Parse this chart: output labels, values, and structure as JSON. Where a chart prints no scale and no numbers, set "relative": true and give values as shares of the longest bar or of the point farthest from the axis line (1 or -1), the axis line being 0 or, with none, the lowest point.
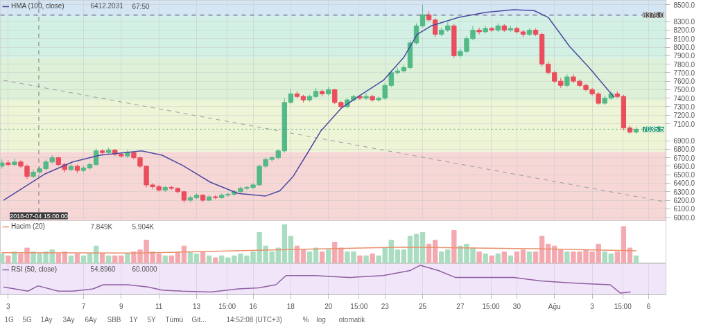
{
  "chart_data": [
    {
      "type": "candlestick",
      "x": [
        "2018-07-02T16:00",
        "2018-07-03T00:00",
        "2018-07-03T08:00",
        "2018-07-03T16:00",
        "2018-07-04T00:00",
        "2018-07-04T08:00",
        "2018-07-04T16:00",
        "2018-07-05T00:00",
        "2018-07-05T08:00",
        "2018-07-05T16:00",
        "2018-07-06T00:00",
        "2018-07-06T08:00",
        "2018-07-06T16:00",
        "2018-07-07T00:00",
        "2018-07-07T08:00",
        "2018-07-07T16:00",
        "2018-07-08T00:00",
        "2018-07-08T08:00",
        "2018-07-08T16:00",
        "2018-07-09T00:00",
        "2018-07-09T08:00",
        "2018-07-09T16:00",
        "2018-07-10T00:00",
        "2018-07-10T08:00",
        "2018-07-10T16:00",
        "2018-07-11T00:00",
        "2018-07-11T08:00",
        "2018-07-11T16:00",
        "2018-07-12T00:00",
        "2018-07-12T08:00",
        "2018-07-12T16:00",
        "2018-07-13T00:00",
        "2018-07-13T08:00",
        "2018-07-13T16:00",
        "2018-07-14T00:00",
        "2018-07-14T08:00",
        "2018-07-14T16:00",
        "2018-07-15T00:00",
        "2018-07-15T08:00",
        "2018-07-15T16:00",
        "2018-07-16T00:00",
        "2018-07-16T08:00",
        "2018-07-16T16:00",
        "2018-07-17T00:00",
        "2018-07-17T08:00",
        "2018-07-17T16:00",
        "2018-07-18T00:00",
        "2018-07-18T08:00",
        "2018-07-18T16:00",
        "2018-07-19T00:00",
        "2018-07-19T08:00",
        "2018-07-19T16:00",
        "2018-07-20T00:00",
        "2018-07-20T08:00",
        "2018-07-20T16:00",
        "2018-07-21T00:00",
        "2018-07-21T08:00",
        "2018-07-21T16:00",
        "2018-07-22T00:00",
        "2018-07-22T08:00",
        "2018-07-22T16:00",
        "2018-07-23T00:00",
        "2018-07-23T08:00",
        "2018-07-23T16:00",
        "2018-07-24T00:00",
        "2018-07-24T08:00",
        "2018-07-24T16:00",
        "2018-07-25T00:00",
        "2018-07-25T08:00",
        "2018-07-25T16:00",
        "2018-07-26T00:00",
        "2018-07-26T08:00",
        "2018-07-26T16:00",
        "2018-07-27T00:00",
        "2018-07-27T08:00",
        "2018-07-27T16:00",
        "2018-07-28T00:00",
        "2018-07-28T08:00",
        "2018-07-28T16:00",
        "2018-07-29T00:00",
        "2018-07-29T08:00",
        "2018-07-29T16:00",
        "2018-07-30T00:00",
        "2018-07-30T08:00",
        "2018-07-30T16:00",
        "2018-07-31T00:00",
        "2018-07-31T08:00",
        "2018-07-31T16:00",
        "2018-08-01T00:00",
        "2018-08-01T08:00",
        "2018-08-01T16:00",
        "2018-08-02T00:00",
        "2018-08-02T08:00",
        "2018-08-02T16:00",
        "2018-08-03T00:00",
        "2018-08-03T08:00",
        "2018-08-03T16:00",
        "2018-08-04T00:00",
        "2018-08-04T08:00",
        "2018-08-04T16:00",
        "2018-08-05T00:00",
        "2018-08-05T08:00"
      ],
      "ohlc": [
        [
          6600,
          6680,
          6570,
          6640
        ],
        [
          6640,
          6670,
          6600,
          6620
        ],
        [
          6620,
          6690,
          6600,
          6650
        ],
        [
          6650,
          6670,
          6580,
          6600
        ],
        [
          6600,
          6620,
          6450,
          6480
        ],
        [
          6480,
          6560,
          6460,
          6530
        ],
        [
          6530,
          6600,
          6510,
          6570
        ],
        [
          6570,
          6680,
          6550,
          6650
        ],
        [
          6650,
          6730,
          6630,
          6700
        ],
        [
          6700,
          6710,
          6600,
          6620
        ],
        [
          6620,
          6640,
          6530,
          6560
        ],
        [
          6560,
          6630,
          6540,
          6600
        ],
        [
          6600,
          6620,
          6520,
          6550
        ],
        [
          6550,
          6600,
          6530,
          6580
        ],
        [
          6580,
          6640,
          6560,
          6620
        ],
        [
          6620,
          6810,
          6600,
          6780
        ],
        [
          6780,
          6800,
          6730,
          6760
        ],
        [
          6760,
          6820,
          6740,
          6790
        ],
        [
          6790,
          6800,
          6720,
          6740
        ],
        [
          6740,
          6760,
          6700,
          6720
        ],
        [
          6720,
          6790,
          6700,
          6760
        ],
        [
          6760,
          6770,
          6680,
          6700
        ],
        [
          6700,
          6710,
          6580,
          6600
        ],
        [
          6600,
          6610,
          6350,
          6380
        ],
        [
          6380,
          6400,
          6330,
          6360
        ],
        [
          6360,
          6380,
          6300,
          6320
        ],
        [
          6320,
          6370,
          6300,
          6350
        ],
        [
          6350,
          6370,
          6320,
          6340
        ],
        [
          6340,
          6350,
          6280,
          6300
        ],
        [
          6300,
          6310,
          6170,
          6200
        ],
        [
          6200,
          6250,
          6180,
          6230
        ],
        [
          6230,
          6280,
          6210,
          6260
        ],
        [
          6260,
          6270,
          6180,
          6200
        ],
        [
          6200,
          6260,
          6190,
          6240
        ],
        [
          6240,
          6260,
          6210,
          6230
        ],
        [
          6230,
          6280,
          6220,
          6260
        ],
        [
          6260,
          6290,
          6240,
          6270
        ],
        [
          6270,
          6320,
          6250,
          6300
        ],
        [
          6300,
          6360,
          6290,
          6340
        ],
        [
          6340,
          6370,
          6320,
          6350
        ],
        [
          6350,
          6400,
          6330,
          6380
        ],
        [
          6380,
          6620,
          6370,
          6600
        ],
        [
          6600,
          6700,
          6580,
          6680
        ],
        [
          6680,
          6720,
          6650,
          6700
        ],
        [
          6700,
          6800,
          6680,
          6780
        ],
        [
          6780,
          7400,
          6760,
          7350
        ],
        [
          7350,
          7500,
          7330,
          7450
        ],
        [
          7450,
          7480,
          7400,
          7420
        ],
        [
          7420,
          7440,
          7350,
          7380
        ],
        [
          7380,
          7440,
          7360,
          7420
        ],
        [
          7420,
          7520,
          7400,
          7480
        ],
        [
          7480,
          7500,
          7420,
          7450
        ],
        [
          7450,
          7530,
          7430,
          7500
        ],
        [
          7500,
          7510,
          7330,
          7350
        ],
        [
          7350,
          7370,
          7270,
          7300
        ],
        [
          7300,
          7400,
          7280,
          7380
        ],
        [
          7380,
          7440,
          7360,
          7420
        ],
        [
          7420,
          7440,
          7380,
          7400
        ],
        [
          7400,
          7460,
          7380,
          7420
        ],
        [
          7420,
          7440,
          7360,
          7380
        ],
        [
          7380,
          7420,
          7360,
          7400
        ],
        [
          7400,
          7580,
          7380,
          7550
        ],
        [
          7550,
          7730,
          7530,
          7700
        ],
        [
          7700,
          7760,
          7680,
          7720
        ],
        [
          7720,
          7790,
          7700,
          7760
        ],
        [
          7760,
          8080,
          7740,
          8050
        ],
        [
          8050,
          8280,
          8030,
          8250
        ],
        [
          8250,
          8500,
          8230,
          8380
        ],
        [
          8380,
          8420,
          8300,
          8320
        ],
        [
          8320,
          8340,
          8120,
          8150
        ],
        [
          8150,
          8230,
          8130,
          8200
        ],
        [
          8200,
          8290,
          8180,
          8250
        ],
        [
          8250,
          8270,
          7870,
          7900
        ],
        [
          7900,
          7980,
          7870,
          7950
        ],
        [
          7950,
          8130,
          7930,
          8100
        ],
        [
          8100,
          8250,
          8080,
          8200
        ],
        [
          8200,
          8230,
          8150,
          8180
        ],
        [
          8180,
          8250,
          8160,
          8220
        ],
        [
          8220,
          8240,
          8180,
          8200
        ],
        [
          8200,
          8280,
          8180,
          8250
        ],
        [
          8250,
          8270,
          8180,
          8200
        ],
        [
          8200,
          8250,
          8180,
          8220
        ],
        [
          8220,
          8240,
          8160,
          8180
        ],
        [
          8180,
          8200,
          8120,
          8150
        ],
        [
          8150,
          8220,
          8130,
          8200
        ],
        [
          8200,
          8220,
          8130,
          8150
        ],
        [
          8150,
          8170,
          7770,
          7800
        ],
        [
          7800,
          7830,
          7680,
          7700
        ],
        [
          7700,
          7720,
          7580,
          7600
        ],
        [
          7600,
          7640,
          7520,
          7550
        ],
        [
          7550,
          7680,
          7530,
          7650
        ],
        [
          7650,
          7680,
          7580,
          7600
        ],
        [
          7600,
          7620,
          7530,
          7550
        ],
        [
          7550,
          7570,
          7480,
          7500
        ],
        [
          7500,
          7520,
          7430,
          7450
        ],
        [
          7450,
          7470,
          7320,
          7340
        ],
        [
          7340,
          7430,
          7320,
          7400
        ],
        [
          7400,
          7480,
          7380,
          7450
        ],
        [
          7450,
          7480,
          7400,
          7420
        ],
        [
          7420,
          7440,
          7020,
          7050
        ],
        [
          7050,
          7080,
          6980,
          7000
        ],
        [
          7000,
          7060,
          6980,
          7035.5
        ]
      ],
      "colors": [
        "#53b987",
        "#eb4d5c",
        "#53b987",
        "#eb4d5c",
        "#eb4d5c",
        "#53b987",
        "#53b987",
        "#53b987",
        "#53b987",
        "#eb4d5c",
        "#eb4d5c",
        "#53b987",
        "#eb4d5c",
        "#53b987",
        "#53b987",
        "#53b987",
        "#eb4d5c",
        "#53b987",
        "#eb4d5c",
        "#eb4d5c",
        "#53b987",
        "#eb4d5c",
        "#eb4d5c",
        "#eb4d5c",
        "#eb4d5c",
        "#eb4d5c",
        "#53b987",
        "#eb4d5c",
        "#eb4d5c",
        "#eb4d5c",
        "#53b987",
        "#53b987",
        "#eb4d5c",
        "#53b987",
        "#eb4d5c",
        "#53b987",
        "#53b987",
        "#53b987",
        "#53b987",
        "#53b987",
        "#53b987",
        "#53b987",
        "#53b987",
        "#53b987",
        "#53b987",
        "#53b987",
        "#53b987",
        "#eb4d5c",
        "#eb4d5c",
        "#53b987",
        "#53b987",
        "#eb4d5c",
        "#53b987",
        "#eb4d5c",
        "#eb4d5c",
        "#53b987",
        "#53b987",
        "#eb4d5c",
        "#53b987",
        "#eb4d5c",
        "#53b987",
        "#53b987",
        "#53b987",
        "#53b987",
        "#53b987",
        "#53b987",
        "#53b987",
        "#53b987",
        "#eb4d5c",
        "#eb4d5c",
        "#53b987",
        "#53b987",
        "#eb4d5c",
        "#53b987",
        "#53b987",
        "#53b987",
        "#eb4d5c",
        "#53b987",
        "#eb4d5c",
        "#53b987",
        "#eb4d5c",
        "#53b987",
        "#eb4d5c",
        "#eb4d5c",
        "#53b987",
        "#eb4d5c",
        "#eb4d5c",
        "#eb4d5c",
        "#eb4d5c",
        "#eb4d5c",
        "#53b987",
        "#eb4d5c",
        "#eb4d5c",
        "#eb4d5c",
        "#eb4d5c",
        "#eb4d5c",
        "#53b987",
        "#53b987",
        "#eb4d5c",
        "#eb4d5c",
        "#eb4d5c",
        "#53b987"
      ],
      "series": [
        {
          "type": "line",
          "name": "HMA (100, close)",
          "color": "#4a4aa0",
          "x": [
            "2018-07-02T18:00",
            "2018-07-04T23:00",
            "2018-07-06T10:00",
            "2018-07-07T21:00",
            "2018-07-10T02:00",
            "2018-07-11T04:00",
            "2018-07-12T06:00",
            "2018-07-13T18:00",
            "2018-07-15T05:00",
            "2018-07-16T16:00",
            "2018-07-17T10:00",
            "2018-07-18T03:00",
            "2018-07-18T21:00",
            "2018-07-19T14:00",
            "2018-07-20T16:00",
            "2018-07-21T19:00",
            "2018-07-22T22:00",
            "2018-07-24T00:00",
            "2018-07-24T17:00",
            "2018-07-25T11:00",
            "2018-07-26T22:00",
            "2018-07-28T09:00",
            "2018-07-29T20:00",
            "2018-07-30T22:00",
            "2018-07-31T16:00",
            "2018-08-01T19:00",
            "2018-08-02T21:00",
            "2018-08-04T04:00"
          ],
          "values": [
            6200,
            6510,
            6650,
            6730,
            6780,
            6730,
            6610,
            6410,
            6280,
            6250,
            6310,
            6480,
            6750,
            7010,
            7280,
            7450,
            7610,
            7880,
            8150,
            8250,
            8350,
            8410,
            8440,
            8430,
            8350,
            8010,
            7750,
            7410
          ]
        },
        {
          "type": "line",
          "color": "#9a9a9a",
          "line_style": "dashed",
          "x": [
            "2018-07-02T18:00",
            "2018-08-06T22:00"
          ],
          "values": [
            7610,
            6180
          ]
        }
      ],
      "xlim": [
        "2018-07-02T14:00",
        "2018-08-06T22:00"
      ],
      "ylim": [
        5960,
        8550
      ],
      "yticks": [
        {
          "value": 6000,
          "label": "6000.0"
        },
        {
          "value": 6100,
          "label": "6100.0"
        },
        {
          "value": 6200,
          "label": "6200.0"
        },
        {
          "value": 6300,
          "label": "6300.0"
        },
        {
          "value": 6400,
          "label": "6400.0"
        },
        {
          "value": 6500,
          "label": "6500.0"
        },
        {
          "value": 6600,
          "label": "6600.0"
        },
        {
          "value": 6700,
          "label": "6700.0"
        },
        {
          "value": 6800,
          "label": "6800.0"
        },
        {
          "value": 6900,
          "label": "6900.0"
        },
        {
          "value": 7100,
          "label": "7100.0"
        },
        {
          "value": 7200,
          "label": "7200.0"
        },
        {
          "value": 7300,
          "label": "7300.0"
        },
        {
          "value": 7400,
          "label": "7400.0"
        },
        {
          "value": 7500,
          "label": "7500.0"
        },
        {
          "value": 7600,
          "label": "7600.0"
        },
        {
          "value": 7700,
          "label": "7700.0"
        },
        {
          "value": 7800,
          "label": "7800.0"
        },
        {
          "value": 7900,
          "label": "7900.0"
        },
        {
          "value": 8000,
          "label": "8000.0"
        },
        {
          "value": 8100,
          "label": "8100.0"
        },
        {
          "value": 8200,
          "label": "8200.0"
        },
        {
          "value": 8300,
          "label": "8300.0"
        },
        {
          "value": 8500,
          "label": "8500.0"
        }
      ],
      "xticks": [
        {
          "value": "2018-07-03T00:00",
          "label": null
        },
        {
          "value": "2018-07-07T00:00",
          "label": null
        },
        {
          "value": "2018-07-09T00:00",
          "label": null
        },
        {
          "value": "2018-07-11T00:00",
          "label": null
        },
        {
          "value": "2018-07-13T00:00",
          "label": null
        },
        {
          "value": "2018-07-14T15:00",
          "label": null
        },
        {
          "value": "2018-07-16T00:00",
          "label": null
        },
        {
          "value": "2018-07-18T00:00",
          "label": null
        },
        {
          "value": "2018-07-20T00:00",
          "label": null
        },
        {
          "value": "2018-07-21T15:00",
          "label": null
        },
        {
          "value": "2018-07-23T00:00",
          "label": null
        },
        {
          "value": "2018-07-25T00:00",
          "label": null
        },
        {
          "value": "2018-07-27T00:00",
          "label": null
        },
        {
          "value": "2018-07-28T15:00",
          "label": null
        },
        {
          "value": "2018-07-30T00:00",
          "label": null
        },
        {
          "value": "2018-08-01T00:00",
          "label": null
        },
        {
          "value": "2018-08-03T00:00",
          "label": null
        },
        {
          "value": "2018-08-04T15:00",
          "label": null
        },
        {
          "value": "2018-08-06T00:00",
          "label": null
        }
      ],
      "tick_labels": "y",
      "grid": true,
      "legend": "top left",
      "bands": [
        {
          "axis": "y",
          "from": 8360,
          "to": 8550,
          "color": "#d4e6f4"
        },
        {
          "axis": "y",
          "from": 7873,
          "to": 8360,
          "color": "#d2f1e4"
        },
        {
          "axis": "y",
          "from": 7373,
          "to": 7873,
          "color": "#dcf1d8"
        },
        {
          "axis": "y",
          "from": 6767,
          "to": 7373,
          "color": "#eef5d6"
        },
        {
          "axis": "y",
          "from": 5960,
          "to": 6767,
          "color": "#f7d6d6"
        }
      ],
      "ref_lines": [
        {
          "axis": "y",
          "value": 8376,
          "label": "8376.0",
          "color": "#555555",
          "line_style": "dashed"
        },
        {
          "axis": "y",
          "value": 7035.5,
          "label": "7035.5",
          "color": "#2e9e78",
          "line_style": "dotted"
        },
        {
          "axis": "x",
          "value": "2018-07-04T15:00",
          "label": "2018-07-04 15:00:00",
          "color": "#777777",
          "line_style": "dashed"
        }
      ],
      "annotations": [
        "6412.2031",
        "67:50"
      ]
    },
    {
      "type": "bar",
      "relative": true,
      "x": [
        "2018-07-02T16:00",
        "2018-07-03T00:00",
        "2018-07-03T08:00",
        "2018-07-03T16:00",
        "2018-07-04T00:00",
        "2018-07-04T08:00",
        "2018-07-04T16:00",
        "2018-07-05T00:00",
        "2018-07-05T08:00",
        "2018-07-05T16:00",
        "2018-07-06T00:00",
        "2018-07-06T08:00",
        "2018-07-06T16:00",
        "2018-07-07T00:00",
        "2018-07-07T08:00",
        "2018-07-07T16:00",
        "2018-07-08T00:00",
        "2018-07-08T08:00",
        "2018-07-08T16:00",
        "2018-07-09T00:00",
        "2018-07-09T08:00",
        "2018-07-09T16:00",
        "2018-07-10T00:00",
        "2018-07-10T08:00",
        "2018-07-10T16:00",
        "2018-07-11T00:00",
        "2018-07-11T08:00",
        "2018-07-11T16:00",
        "2018-07-12T00:00",
        "2018-07-12T08:00",
        "2018-07-12T16:00",
        "2018-07-13T00:00",
        "2018-07-13T08:00",
        "2018-07-13T16:00",
        "2018-07-14T00:00",
        "2018-07-14T08:00",
        "2018-07-14T16:00",
        "2018-07-15T00:00",
        "2018-07-15T08:00",
        "2018-07-15T16:00",
        "2018-07-16T00:00",
        "2018-07-16T08:00",
        "2018-07-16T16:00",
        "2018-07-17T00:00",
        "2018-07-17T08:00",
        "2018-07-17T16:00",
        "2018-07-18T00:00",
        "2018-07-18T08:00",
        "2018-07-18T16:00",
        "2018-07-19T00:00",
        "2018-07-19T08:00",
        "2018-07-19T16:00",
        "2018-07-20T00:00",
        "2018-07-20T08:00",
        "2018-07-20T16:00",
        "2018-07-21T00:00",
        "2018-07-21T08:00",
        "2018-07-21T16:00",
        "2018-07-22T00:00",
        "2018-07-22T08:00",
        "2018-07-22T16:00",
        "2018-07-23T00:00",
        "2018-07-23T08:00",
        "2018-07-23T16:00",
        "2018-07-24T00:00",
        "2018-07-24T08:00",
        "2018-07-24T16:00",
        "2018-07-25T00:00",
        "2018-07-25T08:00",
        "2018-07-25T16:00",
        "2018-07-26T00:00",
        "2018-07-26T08:00",
        "2018-07-26T16:00",
        "2018-07-27T00:00",
        "2018-07-27T08:00",
        "2018-07-27T16:00",
        "2018-07-28T00:00",
        "2018-07-28T08:00",
        "2018-07-28T16:00",
        "2018-07-29T00:00",
        "2018-07-29T08:00",
        "2018-07-29T16:00",
        "2018-07-30T00:00",
        "2018-07-30T08:00",
        "2018-07-30T16:00",
        "2018-07-31T00:00",
        "2018-07-31T08:00",
        "2018-07-31T16:00",
        "2018-08-01T00:00",
        "2018-08-01T08:00",
        "2018-08-01T16:00",
        "2018-08-02T00:00",
        "2018-08-02T08:00",
        "2018-08-02T16:00",
        "2018-08-03T00:00",
        "2018-08-03T08:00",
        "2018-08-03T16:00",
        "2018-08-04T00:00",
        "2018-08-04T08:00",
        "2018-08-04T16:00",
        "2018-08-05T00:00",
        "2018-08-05T08:00"
      ],
      "values": [
        0.25,
        0.2,
        0.3,
        0.25,
        0.4,
        0.3,
        0.25,
        0.3,
        0.35,
        0.25,
        0.3,
        0.2,
        0.25,
        0.2,
        0.25,
        0.45,
        0.25,
        0.2,
        0.2,
        0.2,
        0.25,
        0.3,
        0.35,
        0.6,
        0.3,
        0.25,
        0.2,
        0.2,
        0.3,
        0.45,
        0.3,
        0.25,
        0.3,
        0.2,
        0.15,
        0.2,
        0.15,
        0.2,
        0.25,
        0.2,
        0.3,
        0.8,
        0.45,
        0.3,
        0.4,
        1,
        0.7,
        0.45,
        0.35,
        0.3,
        0.4,
        0.3,
        0.35,
        0.55,
        0.4,
        0.3,
        0.3,
        0.2,
        0.2,
        0.25,
        0.2,
        0.4,
        0.6,
        0.35,
        0.35,
        0.7,
        0.75,
        0.8,
        0.5,
        0.6,
        0.3,
        0.35,
        0.85,
        0.45,
        0.5,
        0.4,
        0.3,
        0.25,
        0.2,
        0.25,
        0.3,
        0.2,
        0.3,
        0.35,
        0.3,
        0.3,
        0.7,
        0.5,
        0.45,
        0.35,
        0.3,
        0.3,
        0.3,
        0.35,
        0.3,
        0.5,
        0.3,
        0.25,
        0.3,
        0.95,
        0.4,
        0.2
      ],
      "colors": [
        "#a9dcc0",
        "#f4a9b0",
        "#a9dcc0",
        "#f4a9b0",
        "#f4a9b0",
        "#a9dcc0",
        "#a9dcc0",
        "#a9dcc0",
        "#a9dcc0",
        "#f4a9b0",
        "#f4a9b0",
        "#a9dcc0",
        "#f4a9b0",
        "#a9dcc0",
        "#a9dcc0",
        "#a9dcc0",
        "#f4a9b0",
        "#a9dcc0",
        "#f4a9b0",
        "#f4a9b0",
        "#a9dcc0",
        "#f4a9b0",
        "#f4a9b0",
        "#f4a9b0",
        "#f4a9b0",
        "#f4a9b0",
        "#a9dcc0",
        "#f4a9b0",
        "#f4a9b0",
        "#f4a9b0",
        "#a9dcc0",
        "#a9dcc0",
        "#f4a9b0",
        "#a9dcc0",
        "#f4a9b0",
        "#a9dcc0",
        "#a9dcc0",
        "#a9dcc0",
        "#a9dcc0",
        "#a9dcc0",
        "#a9dcc0",
        "#a9dcc0",
        "#a9dcc0",
        "#a9dcc0",
        "#a9dcc0",
        "#a9dcc0",
        "#a9dcc0",
        "#f4a9b0",
        "#f4a9b0",
        "#a9dcc0",
        "#a9dcc0",
        "#f4a9b0",
        "#a9dcc0",
        "#f4a9b0",
        "#f4a9b0",
        "#a9dcc0",
        "#a9dcc0",
        "#f4a9b0",
        "#a9dcc0",
        "#f4a9b0",
        "#a9dcc0",
        "#a9dcc0",
        "#a9dcc0",
        "#a9dcc0",
        "#a9dcc0",
        "#a9dcc0",
        "#a9dcc0",
        "#a9dcc0",
        "#f4a9b0",
        "#f4a9b0",
        "#a9dcc0",
        "#a9dcc0",
        "#f4a9b0",
        "#a9dcc0",
        "#a9dcc0",
        "#a9dcc0",
        "#f4a9b0",
        "#a9dcc0",
        "#f4a9b0",
        "#a9dcc0",
        "#f4a9b0",
        "#a9dcc0",
        "#f4a9b0",
        "#f4a9b0",
        "#a9dcc0",
        "#f4a9b0",
        "#f4a9b0",
        "#f4a9b0",
        "#f4a9b0",
        "#f4a9b0",
        "#a9dcc0",
        "#f4a9b0",
        "#f4a9b0",
        "#f4a9b0",
        "#f4a9b0",
        "#f4a9b0",
        "#a9dcc0",
        "#a9dcc0",
        "#f4a9b0",
        "#f4a9b0",
        "#f4a9b0",
        "#a9dcc0"
      ],
      "series": [
        {
          "type": "line",
          "name": "Hacim (20)",
          "color": "#e8906a",
          "x": [
            "2018-07-02T16:00",
            "2018-07-10T00:00",
            "2018-07-17T00:00",
            "2018-07-24T00:00",
            "2018-07-31T00:00",
            "2018-08-05T08:00"
          ],
          "values": [
            0.28,
            0.27,
            0.35,
            0.42,
            0.38,
            0.33
          ]
        }
      ],
      "xlim": [
        "2018-07-02T14:00",
        "2018-08-06T22:00"
      ],
      "tick_labels": false,
      "legend": "top left",
      "annotations": [
        "7.849K",
        "5.904K"
      ]
    },
    {
      "type": "line",
      "relative": true,
      "series": [
        {
          "name": "RSI (50, close)",
          "color": "#8e5ea2",
          "x": [
            "2018-07-02T18:00",
            "2018-07-04T01:00",
            "2018-07-04T14:00",
            "2018-07-05T16:00",
            "2018-07-06T10:00",
            "2018-07-07T12:00",
            "2018-07-08T01:00",
            "2018-07-09T08:00",
            "2018-07-10T10:00",
            "2018-07-11T04:00",
            "2018-07-12T06:00",
            "2018-07-13T18:00",
            "2018-07-15T05:00",
            "2018-07-16T07:00",
            "2018-07-17T05:00",
            "2018-07-17T18:00",
            "2018-07-19T06:00",
            "2018-07-21T02:00",
            "2018-07-22T22:00",
            "2018-07-24T08:00",
            "2018-07-24T21:00",
            "2018-07-25T20:00",
            "2018-07-26T18:00",
            "2018-07-28T09:00",
            "2018-07-29T20:00",
            "2018-07-31T07:00",
            "2018-08-01T19:00",
            "2018-08-02T21:00",
            "2018-08-03T23:00",
            "2018-08-04T12:00",
            "2018-08-05T01:00"
          ],
          "values": [
            0.22,
            0.07,
            0.26,
            0.07,
            0.07,
            0.15,
            0.3,
            0.3,
            0.22,
            0.11,
            0.07,
            0.04,
            0.15,
            0.19,
            0.3,
            0.63,
            0.63,
            0.56,
            0.63,
            0.81,
            1,
            0.81,
            0.56,
            0.56,
            0.56,
            0.44,
            0.37,
            0.33,
            0.3,
            0,
            0.04
          ]
        }
      ],
      "xlim": [
        "2018-07-02T14:00",
        "2018-08-06T22:00"
      ],
      "xticks": [
        {
          "value": "2018-07-03T00:00",
          "label": "3"
        },
        {
          "value": "2018-07-07T00:00",
          "label": "7"
        },
        {
          "value": "2018-07-09T00:00",
          "label": "9"
        },
        {
          "value": "2018-07-11T00:00",
          "label": "11"
        },
        {
          "value": "2018-07-13T00:00",
          "label": "13"
        },
        {
          "value": "2018-07-14T15:00",
          "label": "15:00"
        },
        {
          "value": "2018-07-16T00:00",
          "label": "16"
        },
        {
          "value": "2018-07-18T00:00",
          "label": "18"
        },
        {
          "value": "2018-07-20T00:00",
          "label": "20"
        },
        {
          "value": "2018-07-21T15:00",
          "label": "15:00"
        },
        {
          "value": "2018-07-23T00:00",
          "label": "23"
        },
        {
          "value": "2018-07-25T00:00",
          "label": "25"
        },
        {
          "value": "2018-07-27T00:00",
          "label": "27"
        },
        {
          "value": "2018-07-28T15:00",
          "label": "15:00"
        },
        {
          "value": "2018-07-30T00:00",
          "label": "30"
        },
        {
          "value": "2018-08-01T00:00",
          "label": "Ağu"
        },
        {
          "value": "2018-08-03T00:00",
          "label": "3"
        },
        {
          "value": "2018-08-04T15:00",
          "label": "15:00"
        },
        {
          "value": "2018-08-06T00:00",
          "label": "6"
        }
      ],
      "tick_labels": "x",
      "grid": "x",
      "legend": "top left",
      "annotations": [
        "54.8960",
        "60.0000"
      ]
    },
    {
      "type": "other",
      "annotations": [
        "1G",
        "5G",
        "1Ay",
        "3Ay",
        "6Ay",
        "SBB",
        "1Y",
        "5Y",
        "Tümü",
        "Git...",
        "14:52:08 (UTC+3)",
        "%",
        "log",
        "otomatik"
      ]
    }
  ]
}
